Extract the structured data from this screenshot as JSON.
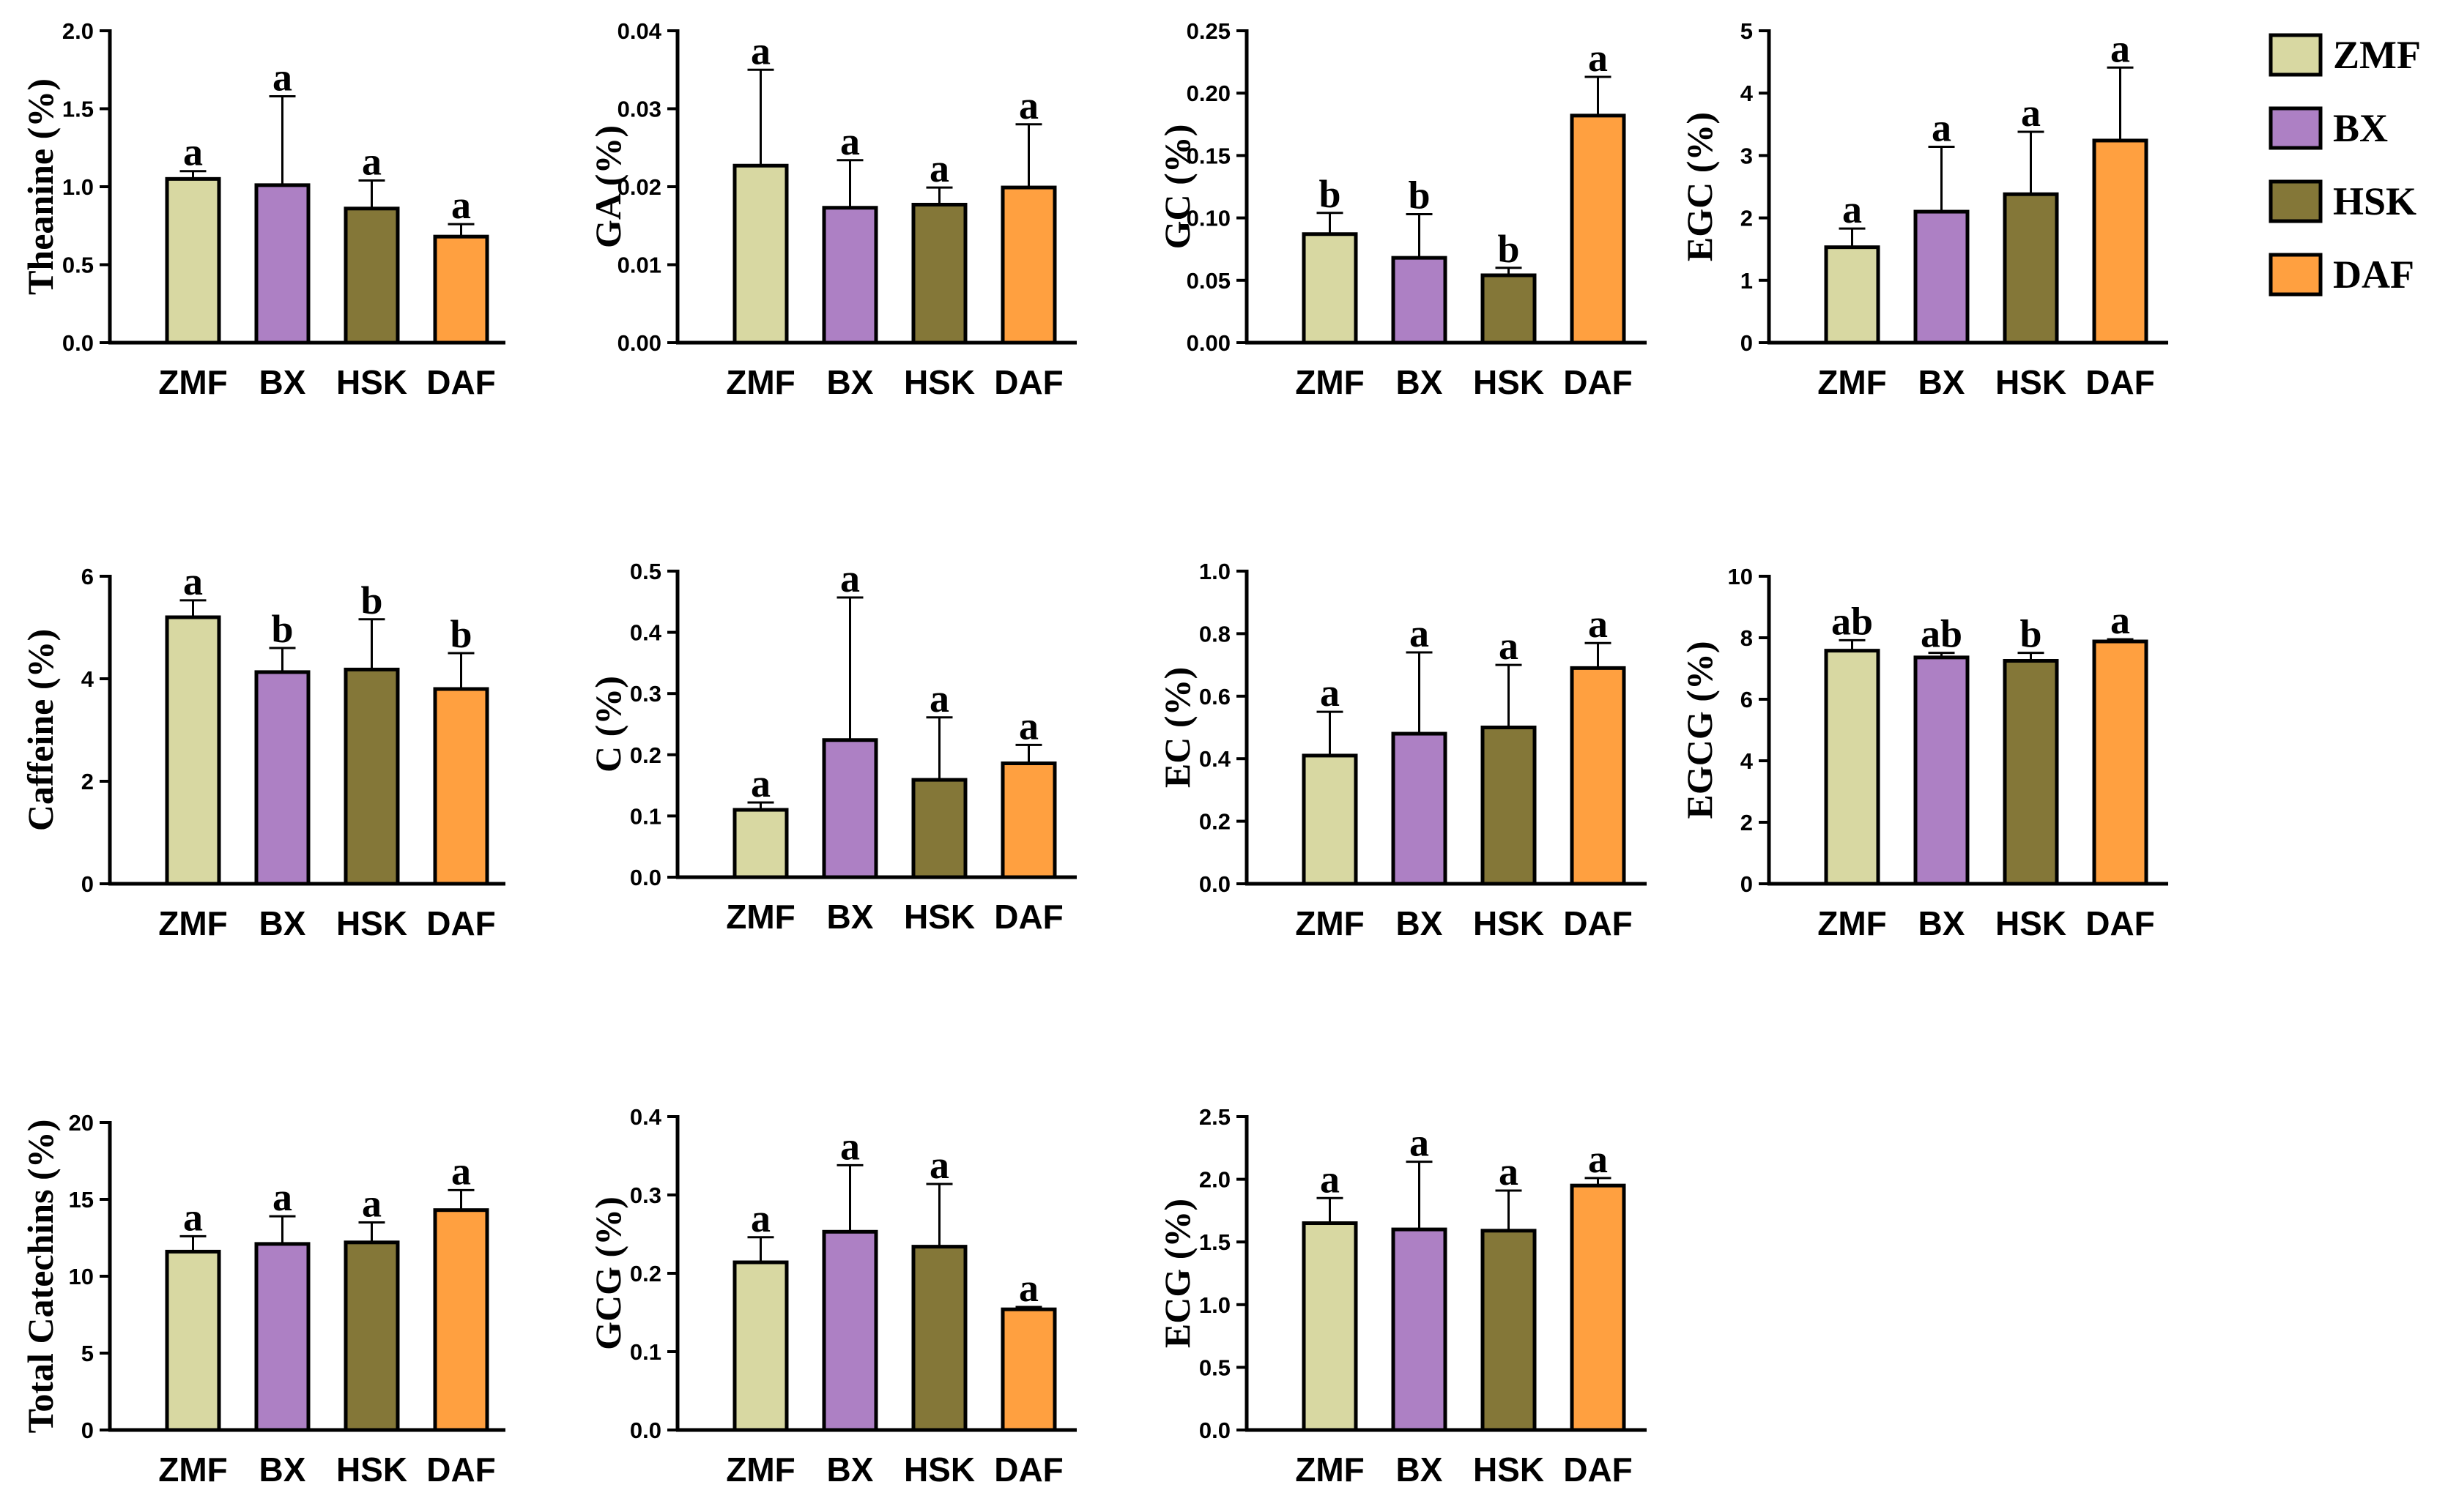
{
  "legend": {
    "entries": [
      {
        "label": "ZMF",
        "color": "#d8d8a2"
      },
      {
        "label": "BX",
        "color": "#ad80c4"
      },
      {
        "label": "HSK",
        "color": "#847738"
      },
      {
        "label": "DAF",
        "color": "#ffa040"
      }
    ]
  },
  "chart_data": [
    {
      "type": "bar",
      "id": "theanine",
      "ylabel": "Theanine (%)",
      "categories": [
        "ZMF",
        "BX",
        "HSK",
        "DAF"
      ],
      "ylim": [
        0,
        2.0
      ],
      "yticks": [
        "0.0",
        "0.5",
        "1.0",
        "1.5",
        "2.0"
      ],
      "values": [
        1.05,
        1.01,
        0.86,
        0.68
      ],
      "errors": [
        0.05,
        0.57,
        0.18,
        0.08
      ],
      "letters": [
        "a",
        "a",
        "a",
        "a"
      ]
    },
    {
      "type": "bar",
      "id": "ga",
      "ylabel": "GA (%)",
      "categories": [
        "ZMF",
        "BX",
        "HSK",
        "DAF"
      ],
      "ylim": [
        0,
        0.04
      ],
      "yticks": [
        "0.00",
        "0.01",
        "0.02",
        "0.03",
        "0.04"
      ],
      "values": [
        0.0227,
        0.0173,
        0.0177,
        0.0199
      ],
      "errors": [
        0.0123,
        0.0061,
        0.0022,
        0.0081
      ],
      "letters": [
        "a",
        "a",
        "a",
        "a"
      ]
    },
    {
      "type": "bar",
      "id": "gc",
      "ylabel": "GC (%)",
      "categories": [
        "ZMF",
        "BX",
        "HSK",
        "DAF"
      ],
      "ylim": [
        0,
        0.25
      ],
      "yticks": [
        "0.00",
        "0.05",
        "0.10",
        "0.15",
        "0.20",
        "0.25"
      ],
      "values": [
        0.087,
        0.068,
        0.054,
        0.182
      ],
      "errors": [
        0.017,
        0.035,
        0.006,
        0.031
      ],
      "letters": [
        "b",
        "b",
        "b",
        "a"
      ]
    },
    {
      "type": "bar",
      "id": "egc",
      "ylabel": "EGC (%)",
      "categories": [
        "ZMF",
        "BX",
        "HSK",
        "DAF"
      ],
      "ylim": [
        0,
        5
      ],
      "yticks": [
        "0",
        "1",
        "2",
        "3",
        "4",
        "5"
      ],
      "values": [
        1.53,
        2.1,
        2.38,
        3.24
      ],
      "errors": [
        0.3,
        1.04,
        1.0,
        1.17
      ],
      "letters": [
        "a",
        "a",
        "a",
        "a"
      ]
    },
    {
      "type": "bar",
      "id": "caffeine",
      "ylabel": "Caffeine (%)",
      "categories": [
        "ZMF",
        "BX",
        "HSK",
        "DAF"
      ],
      "ylim": [
        0,
        6
      ],
      "yticks": [
        "0",
        "2",
        "4",
        "6"
      ],
      "values": [
        5.2,
        4.13,
        4.18,
        3.8
      ],
      "errors": [
        0.33,
        0.47,
        0.98,
        0.7
      ],
      "letters": [
        "a",
        "b",
        "b",
        "b"
      ]
    },
    {
      "type": "bar",
      "id": "c",
      "ylabel": "C (%)",
      "categories": [
        "ZMF",
        "BX",
        "HSK",
        "DAF"
      ],
      "ylim": [
        0,
        0.5
      ],
      "yticks": [
        "0.0",
        "0.1",
        "0.2",
        "0.3",
        "0.4",
        "0.5"
      ],
      "values": [
        0.11,
        0.224,
        0.159,
        0.186
      ],
      "errors": [
        0.012,
        0.233,
        0.102,
        0.03
      ],
      "letters": [
        "a",
        "a",
        "a",
        "a"
      ]
    },
    {
      "type": "bar",
      "id": "ec",
      "ylabel": "EC (%)",
      "categories": [
        "ZMF",
        "BX",
        "HSK",
        "DAF"
      ],
      "ylim": [
        0,
        1.0
      ],
      "yticks": [
        "0.0",
        "0.2",
        "0.4",
        "0.6",
        "0.8",
        "1.0"
      ],
      "values": [
        0.41,
        0.48,
        0.5,
        0.69
      ],
      "errors": [
        0.14,
        0.26,
        0.2,
        0.08
      ],
      "letters": [
        "a",
        "a",
        "a",
        "a"
      ]
    },
    {
      "type": "bar",
      "id": "egcg",
      "ylabel": "EGCG (%)",
      "categories": [
        "ZMF",
        "BX",
        "HSK",
        "DAF"
      ],
      "ylim": [
        0,
        10
      ],
      "yticks": [
        "0",
        "2",
        "4",
        "6",
        "8",
        "10"
      ],
      "values": [
        7.58,
        7.36,
        7.25,
        7.88
      ],
      "errors": [
        0.34,
        0.15,
        0.26,
        0.07
      ],
      "letters": [
        "ab",
        "ab",
        "b",
        "a"
      ]
    },
    {
      "type": "bar",
      "id": "total",
      "ylabel": "Total Catechins (%)",
      "categories": [
        "ZMF",
        "BX",
        "HSK",
        "DAF"
      ],
      "ylim": [
        0,
        20
      ],
      "yticks": [
        "0",
        "5",
        "10",
        "15",
        "20"
      ],
      "values": [
        11.6,
        12.1,
        12.2,
        14.3
      ],
      "errors": [
        1.0,
        1.8,
        1.3,
        1.3
      ],
      "letters": [
        "a",
        "a",
        "a",
        "a"
      ]
    },
    {
      "type": "bar",
      "id": "gcg",
      "ylabel": "GCG (%)",
      "categories": [
        "ZMF",
        "BX",
        "HSK",
        "DAF"
      ],
      "ylim": [
        0,
        0.4
      ],
      "yticks": [
        "0.0",
        "0.1",
        "0.2",
        "0.3",
        "0.4"
      ],
      "values": [
        0.214,
        0.253,
        0.234,
        0.154
      ],
      "errors": [
        0.032,
        0.085,
        0.08,
        0.003
      ],
      "letters": [
        "a",
        "a",
        "a",
        "a"
      ]
    },
    {
      "type": "bar",
      "id": "ecg",
      "ylabel": "ECG (%)",
      "categories": [
        "ZMF",
        "BX",
        "HSK",
        "DAF"
      ],
      "ylim": [
        0,
        2.5
      ],
      "yticks": [
        "0.0",
        "0.5",
        "1.0",
        "1.5",
        "2.0",
        "2.5"
      ],
      "values": [
        1.65,
        1.6,
        1.59,
        1.95
      ],
      "errors": [
        0.2,
        0.54,
        0.32,
        0.06
      ],
      "letters": [
        "a",
        "a",
        "a",
        "a"
      ]
    }
  ]
}
